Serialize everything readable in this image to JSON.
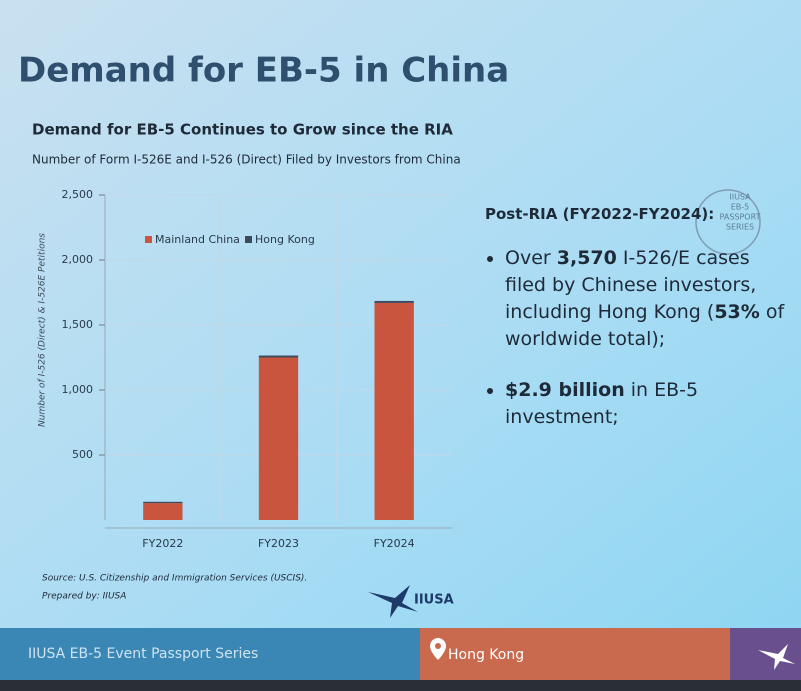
{
  "slide_title": "Demand for EB-5 in China",
  "chart_data": {
    "type": "bar",
    "stacked": true,
    "title": "Demand for EB-5 Continues to Grow since the RIA",
    "subtitle": "Number of Form I-526E and I-526 (Direct) Filed by Investors from China",
    "y_label": "Number of I-526 (Direct) & I-526E Petitions",
    "categories": [
      "FY2022",
      "FY2023",
      "FY2024"
    ],
    "series": [
      {
        "name": "Mainland China",
        "color": "#c9553e",
        "values": [
          130,
          1250,
          1670
        ]
      },
      {
        "name": "Hong Kong",
        "color": "#3e4a5c",
        "values": [
          10,
          15,
          15
        ]
      }
    ],
    "ylim": [
      0,
      2500
    ],
    "yticks": [
      500,
      {
        "value": 1000,
        "label": "1,000"
      },
      {
        "value": 1500,
        "label": "1,500"
      },
      {
        "value": 2000,
        "label": "2,000"
      },
      {
        "value": 2500,
        "label": "2,500"
      }
    ],
    "grid": true,
    "source": "Source: U.S. Citizenship and Immigration Services (USCIS).",
    "prepared_by": "Prepared by: IIUSA",
    "logo": "IIUSA"
  },
  "post_ria": {
    "heading": "Post-RIA (FY2022-FY2024):",
    "bullets": [
      [
        {
          "text": "Over ",
          "bold": false
        },
        {
          "text": "3,570",
          "bold": true
        },
        {
          "text": " I-526/E cases filed by Chinese investors, including Hong Kong (",
          "bold": false
        },
        {
          "text": "53%",
          "bold": true
        },
        {
          "text": " of worldwide total);",
          "bold": false
        }
      ],
      [
        {
          "text": "$2.9 billion",
          "bold": true
        },
        {
          "text": " in EB-5 investment;",
          "bold": false
        }
      ]
    ]
  },
  "stamp": [
    "IIUSA",
    "EB-5",
    "PASSPORT",
    "SERIES"
  ],
  "footer": {
    "series": "IIUSA EB-5 Event Passport Series",
    "location": "Hong Kong"
  }
}
